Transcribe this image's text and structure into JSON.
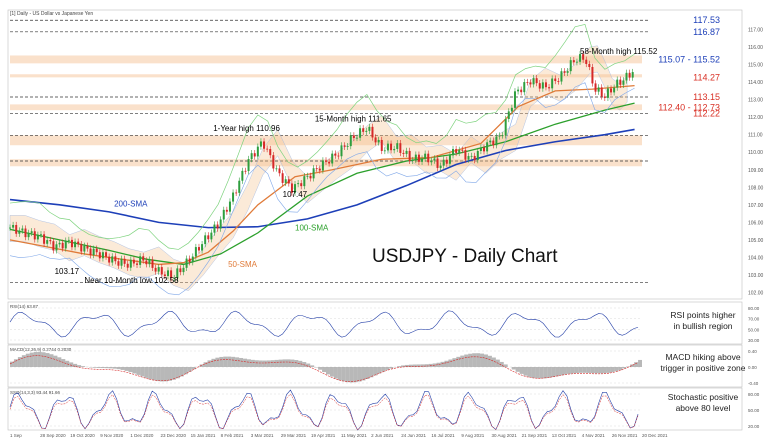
{
  "header": {
    "symbol_line": "[1] Daily - US Dollar vs Japanese Yen"
  },
  "chart_data": {
    "type": "line",
    "title": "USDJPY - Daily Chart",
    "x_ticks": [
      "1 Sep",
      "28 Sep 2020",
      "19 Oct 2020",
      "9 Nov 2020",
      "1 Dec 2020",
      "23 Dec 2020",
      "15 Jan 2021",
      "8 Feb 2021",
      "3 Mar 2021",
      "29 Mar 2021",
      "19 Apr 2021",
      "11 May 2021",
      "2 Jun 2021",
      "24 Jun 2021",
      "16 Jul 2021",
      "9 Aug 2021",
      "30 Aug 2021",
      "21 Sep 2021",
      "13 Oct 2021",
      "4 Nov 2021",
      "26 Nov 2021",
      "20 Dec 2021"
    ],
    "right_price_labels": [
      {
        "text": "117.53",
        "value": 117.53,
        "color": "#1d3fb8"
      },
      {
        "text": "116.87",
        "value": 116.87,
        "color": "#1d3fb8"
      },
      {
        "text": "115.07 - 115.52",
        "value": 115.3,
        "color": "#1d3fb8"
      },
      {
        "text": "114.27",
        "value": 114.27,
        "color": "#d93025"
      },
      {
        "text": "113.15",
        "value": 113.15,
        "color": "#d93025"
      },
      {
        "text": "112.40 - 112.73",
        "value": 112.55,
        "color": "#d93025"
      },
      {
        "text": "112.22",
        "value": 112.22,
        "color": "#d93025"
      }
    ],
    "annotations": [
      {
        "text": "58-Month high 115.52",
        "x": 230,
        "y": 115.6,
        "color": "#000000"
      },
      {
        "text": "1-Year high 110.96",
        "x": 82,
        "y": 111.2,
        "color": "#000000"
      },
      {
        "text": "15-Month high 111.65",
        "x": 123,
        "y": 111.75,
        "color": "#000000"
      },
      {
        "text": "107.47",
        "x": 110,
        "y": 107.45,
        "color": "#000000"
      },
      {
        "text": "200-SMA",
        "x": 42,
        "y": 106.9,
        "color": "#1d3fb8"
      },
      {
        "text": "100-SMA",
        "x": 115,
        "y": 105.55,
        "color": "#2ca02c"
      },
      {
        "text": "50-SMA",
        "x": 88,
        "y": 103.45,
        "color": "#e07b39"
      },
      {
        "text": "103.17",
        "x": 18,
        "y": 103.05,
        "color": "#000000"
      },
      {
        "text": "Near 10-Month low 102.58",
        "x": 30,
        "y": 102.55,
        "color": "#000000"
      }
    ],
    "horizontal_levels": [
      117.53,
      116.87,
      113.15,
      112.22,
      110.96,
      109.5,
      102.58
    ],
    "zones": [
      {
        "from": 115.07,
        "to": 115.52
      },
      {
        "from": 114.27,
        "to": 114.45
      },
      {
        "from": 112.4,
        "to": 112.73
      },
      {
        "from": 110.4,
        "to": 110.96
      },
      {
        "from": 109.2,
        "to": 109.6
      }
    ],
    "ylim": [
      101.8,
      118.0
    ],
    "xlim": [
      0,
      255
    ],
    "series": [
      {
        "name": "200-SMA",
        "color": "#1d3fb8",
        "x": [
          0,
          20,
          40,
          60,
          80,
          100,
          120,
          140,
          160,
          180,
          200,
          220,
          240,
          252
        ],
        "values": [
          107.3,
          107.0,
          106.6,
          106.0,
          105.7,
          105.75,
          106.2,
          107.0,
          108.1,
          109.3,
          110.1,
          110.6,
          111.0,
          111.3
        ]
      },
      {
        "name": "100-SMA",
        "color": "#2ca02c",
        "x": [
          0,
          20,
          40,
          55,
          70,
          85,
          100,
          120,
          140,
          160,
          180,
          200,
          220,
          240,
          252
        ],
        "values": [
          105.6,
          105.0,
          104.4,
          103.9,
          103.6,
          104.2,
          105.4,
          107.5,
          108.8,
          109.5,
          109.9,
          110.6,
          111.6,
          112.4,
          112.8
        ]
      },
      {
        "name": "50-SMA",
        "color": "#e07b39",
        "x": [
          0,
          15,
          30,
          45,
          60,
          70,
          80,
          90,
          100,
          115,
          130,
          150,
          170,
          190,
          205,
          220,
          235,
          252
        ],
        "values": [
          105.0,
          104.6,
          104.2,
          103.9,
          103.6,
          103.7,
          104.3,
          105.5,
          107.0,
          108.6,
          109.0,
          109.6,
          109.7,
          110.5,
          112.6,
          113.5,
          113.6,
          113.8
        ]
      },
      {
        "name": "",
        "color": "#333333",
        "x": [
          0,
          6,
          12,
          18,
          24,
          30,
          36,
          42,
          48,
          54,
          60,
          66,
          72,
          78,
          84,
          90,
          96,
          102,
          108,
          114,
          120,
          126,
          132,
          138,
          144,
          150,
          156,
          162,
          168,
          174,
          180,
          186,
          192,
          198,
          204,
          210,
          216,
          222,
          228,
          232,
          236,
          240,
          244,
          248,
          252
        ],
        "values": [
          105.7,
          105.4,
          105.2,
          104.6,
          104.9,
          104.5,
          104.2,
          103.8,
          103.6,
          103.9,
          103.2,
          102.9,
          103.8,
          104.9,
          105.9,
          107.5,
          109.5,
          110.6,
          108.8,
          107.9,
          108.6,
          109.3,
          109.9,
          110.8,
          111.4,
          110.2,
          110.3,
          109.6,
          109.7,
          109.2,
          110.2,
          109.6,
          110.4,
          110.9,
          113.4,
          114.1,
          113.7,
          114.3,
          115.3,
          115.4,
          113.6,
          113.2,
          113.8,
          114.2,
          114.7
        ]
      }
    ]
  },
  "indicators": [
    {
      "header": "RSI(14) 63.87",
      "label_lines": [
        "RSI points higher",
        "in bullish region"
      ],
      "ticks": [
        "80.00",
        "70.00",
        "50.00",
        "30.00"
      ]
    },
    {
      "header": "MACD(12,26,9) 0.2744 0.2030",
      "label_lines": [
        "MACD hiking above",
        "trigger in positive zone"
      ],
      "ticks": [
        "0.40",
        "0.00",
        "-0.40"
      ]
    },
    {
      "header": "SSO(14,3,3) 93.44 91.66",
      "label_lines": [
        "Stochastic positive",
        "above 80 level"
      ],
      "ticks": [
        "80.00",
        "50.00",
        "20.00"
      ]
    }
  ],
  "right_axis_ticks": [
    "117.00",
    "116.00",
    "115.00",
    "114.00",
    "113.00",
    "112.00",
    "111.00",
    "110.00",
    "109.00",
    "108.00",
    "107.00",
    "106.00",
    "105.00",
    "104.00",
    "103.00",
    "102.00"
  ]
}
